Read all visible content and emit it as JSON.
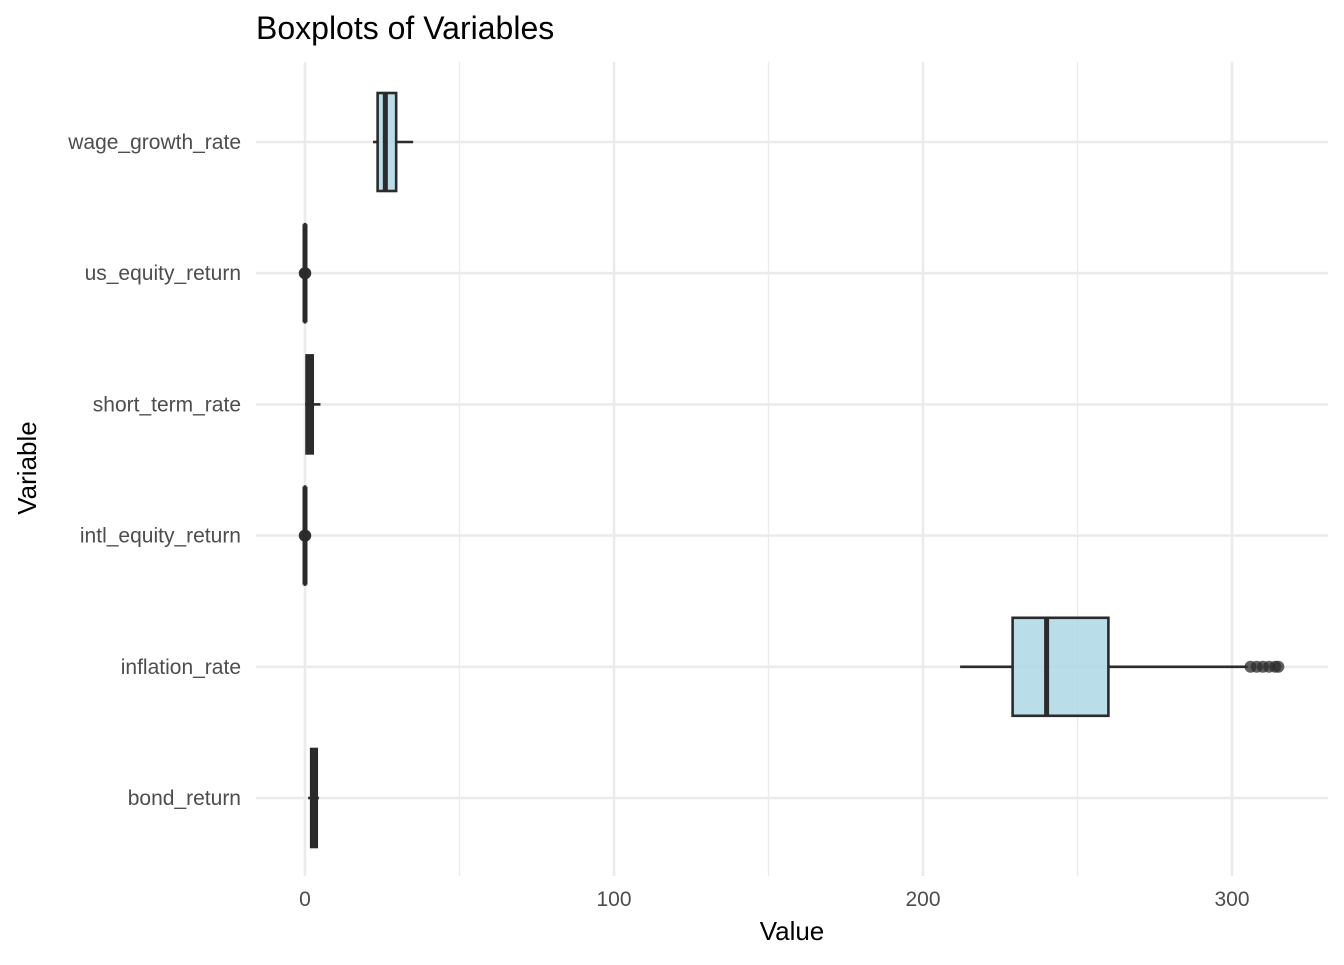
{
  "chart_data": {
    "type": "boxplot",
    "title": "Boxplots of Variables",
    "xlabel": "Value",
    "ylabel": "Variable",
    "xlim": [
      -15,
      330
    ],
    "x_ticks": [
      0,
      100,
      200,
      300
    ],
    "x_tick_labels": [
      "0",
      "100",
      "200",
      "300"
    ],
    "grid": true,
    "colors": {
      "box_fill": "#add8e6",
      "box_stroke": "#2b2b2b",
      "grid": "#ebebeb"
    },
    "categories": [
      "wage_growth_rate",
      "us_equity_return",
      "short_term_rate",
      "intl_equity_return",
      "inflation_rate",
      "bond_return"
    ],
    "boxes": [
      {
        "name": "wage_growth_rate",
        "whisker_low": 22,
        "q1": 23.5,
        "median": 26,
        "q3": 29.5,
        "whisker_high": 35,
        "outliers": []
      },
      {
        "name": "us_equity_return",
        "whisker_low": -0.2,
        "q1": -0.05,
        "median": 0,
        "q3": 0.05,
        "whisker_high": 0.2,
        "outliers": [
          0,
          0.1,
          -0.1
        ]
      },
      {
        "name": "short_term_rate",
        "whisker_low": 0,
        "q1": 0.5,
        "median": 1.5,
        "q3": 2.5,
        "whisker_high": 5,
        "outliers": []
      },
      {
        "name": "intl_equity_return",
        "whisker_low": -0.2,
        "q1": -0.05,
        "median": 0,
        "q3": 0.05,
        "whisker_high": 0.2,
        "outliers": [
          0,
          0.1,
          -0.1
        ]
      },
      {
        "name": "inflation_rate",
        "whisker_low": 212,
        "q1": 229,
        "median": 240,
        "q3": 260,
        "whisker_high": 305,
        "outliers": [
          306,
          308,
          310,
          312,
          314,
          315
        ]
      },
      {
        "name": "bond_return",
        "whisker_low": 1,
        "q1": 2,
        "median": 3,
        "q3": 3.8,
        "whisker_high": 4.5,
        "outliers": []
      }
    ]
  }
}
